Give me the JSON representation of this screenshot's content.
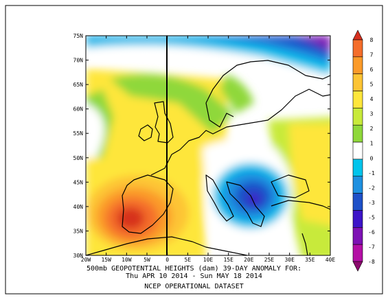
{
  "map": {
    "title_line1": "500mb GEOPOTENTIAL HEIGHTS (dam)   39-DAY ANOMALY FOR:",
    "title_line2": "Thu APR 10 2014 - Sun MAY 18 2014",
    "title_line3": "NCEP OPERATIONAL DATASET",
    "lat_labels": [
      "75N",
      "70N",
      "65N",
      "60N",
      "55N",
      "50N",
      "45N",
      "40N",
      "35N",
      "30N"
    ],
    "lon_labels": [
      "20W",
      "15W",
      "10W",
      "5W",
      "0",
      "5E",
      "10E",
      "15E",
      "20E",
      "25E",
      "30E",
      "35E",
      "40E"
    ]
  },
  "colorbar": {
    "labels": [
      "8",
      "7",
      "6",
      "5",
      "4",
      "3",
      "2",
      "1",
      "0",
      "-1",
      "-2",
      "-3",
      "-5",
      "-6",
      "-7",
      "-8"
    ],
    "colors": [
      "#d7301f",
      "#f46d2a",
      "#fb9a29",
      "#fdc434",
      "#fee63b",
      "#c8ea3a",
      "#8fd83a",
      "#ffffff",
      "#00c4ec",
      "#1e90e0",
      "#1e50c8",
      "#3c14c8",
      "#7d12b4",
      "#b40fa5",
      "#8c0a6e"
    ]
  }
}
